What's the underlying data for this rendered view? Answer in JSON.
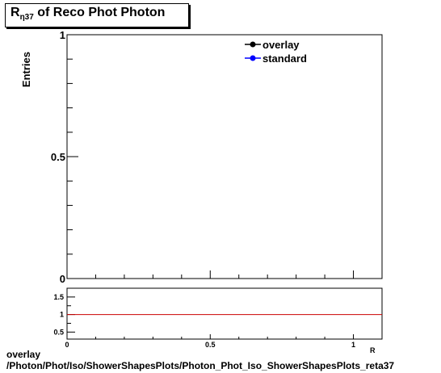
{
  "title": {
    "main": "R",
    "sub": "η37",
    "rest": " of Reco Phot Photon"
  },
  "chart_data": [
    {
      "type": "line",
      "ylabel": "Entries",
      "xlim": [
        0,
        1.1
      ],
      "ylim": [
        0,
        1
      ],
      "yticks": [
        "0",
        "0.5",
        "1"
      ],
      "legend": {
        "placement": "top-right",
        "entries": [
          {
            "name": "overlay",
            "color": "#000000"
          },
          {
            "name": "standard",
            "color": "#0000ff"
          }
        ]
      },
      "series": [
        {
          "name": "overlay",
          "values": []
        },
        {
          "name": "standard",
          "values": []
        }
      ]
    },
    {
      "type": "line",
      "xlim": [
        0,
        1.1
      ],
      "ylim": [
        0.3,
        1.75
      ],
      "yticks": [
        "0.5",
        "1",
        "1.5"
      ],
      "xticks": [
        "0",
        "0.5",
        "1"
      ],
      "xlabel": "R",
      "reference_line": {
        "y": 1,
        "color": "#cc0000"
      }
    }
  ],
  "footer": {
    "line1": "overlay",
    "line2": "/Photon/Phot/Iso/ShowerShapesPlots/Photon_Phot_Iso_ShowerShapesPlots_reta37"
  }
}
